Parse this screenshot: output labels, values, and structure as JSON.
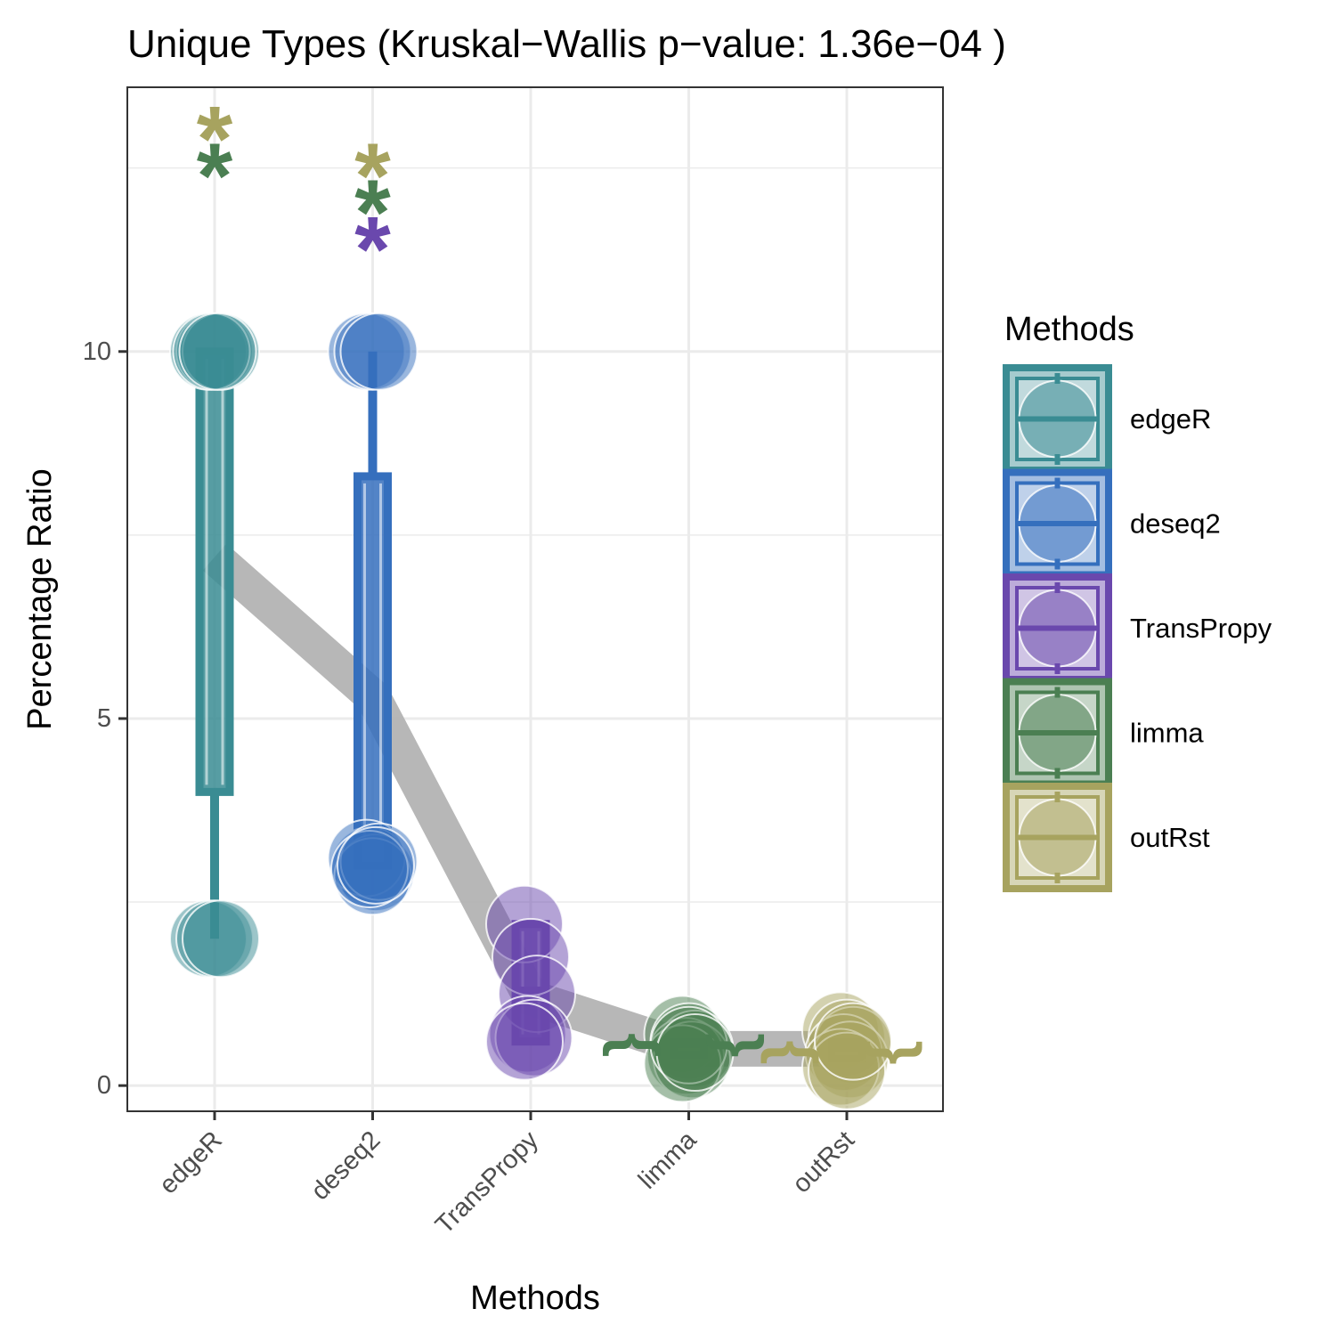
{
  "chart_data": {
    "type": "boxplot",
    "title": "Unique Types (Kruskal−Wallis p−value: 1.36e−04 )",
    "xlabel": "Methods",
    "ylabel": "Percentage Ratio",
    "categories": [
      "edgeR",
      "deseq2",
      "TransPropy",
      "limma",
      "outRst"
    ],
    "y_ticks": [
      {
        "value": 0,
        "label": "0"
      },
      {
        "value": 5,
        "label": "5"
      },
      {
        "value": 10,
        "label": "10"
      }
    ],
    "ylim": [
      -0.35,
      13.6
    ],
    "grid": true,
    "legend": {
      "title": "Methods",
      "position": "right",
      "entries": [
        "edgeR",
        "deseq2",
        "TransPropy",
        "limma",
        "outRst"
      ]
    },
    "colors": {
      "edgeR": "#3a8c93",
      "deseq2": "#356fbd",
      "TransPropy": "#6a48ad",
      "limma": "#4b7f52",
      "outRst": "#a7a35f",
      "mean_line": "#b3b3b3"
    },
    "boxes": [
      {
        "method": "edgeR",
        "min": 2.0,
        "q1": 4.0,
        "median": 10.0,
        "q3": 10.0,
        "max": 10.0
      },
      {
        "method": "deseq2",
        "min": 3.0,
        "q1": 3.0,
        "median": 3.0,
        "q3": 8.3,
        "max": 10.0
      },
      {
        "method": "TransPropy",
        "min": 0.6,
        "q1": 0.6,
        "median": 1.3,
        "q3": 2.2,
        "max": 2.2
      },
      {
        "method": "limma",
        "min": 0.4,
        "q1": 0.42,
        "median": 0.55,
        "q3": 0.6,
        "max": 0.62
      },
      {
        "method": "outRst",
        "min": 0.35,
        "q1": 0.36,
        "median": 0.5,
        "q3": 0.6,
        "max": 0.62
      }
    ],
    "points": [
      {
        "method": "edgeR",
        "values": [
          10.0,
          10.0,
          10.0,
          10.0,
          10.0,
          2.0,
          2.0,
          2.0
        ]
      },
      {
        "method": "deseq2",
        "values": [
          10.0,
          10.0,
          10.0,
          3.0,
          2.9,
          3.1,
          2.85,
          3.05,
          2.95,
          3.0
        ]
      },
      {
        "method": "TransPropy",
        "values": [
          2.2,
          1.75,
          1.25,
          0.7,
          0.65,
          0.6
        ]
      },
      {
        "method": "limma",
        "values": [
          0.7,
          0.6,
          0.5,
          0.4,
          0.35,
          0.3,
          0.55,
          0.45
        ]
      },
      {
        "method": "outRst",
        "values": [
          0.75,
          0.65,
          0.55,
          0.45,
          0.35,
          0.25,
          0.2,
          0.6
        ]
      }
    ],
    "mean_line": [
      {
        "method": "edgeR",
        "value": 7.2
      },
      {
        "method": "deseq2",
        "value": 5.3
      },
      {
        "method": "TransPropy",
        "value": 1.2
      },
      {
        "method": "limma",
        "value": 0.5
      },
      {
        "method": "outRst",
        "value": 0.5
      }
    ],
    "significance_marks": [
      {
        "method": "edgeR",
        "label": "*",
        "color": "outRst",
        "value": 13.3
      },
      {
        "method": "edgeR",
        "label": "*",
        "color": "limma",
        "value": 12.8
      },
      {
        "method": "deseq2",
        "label": "*",
        "color": "outRst",
        "value": 12.8
      },
      {
        "method": "deseq2",
        "label": "*",
        "color": "limma",
        "value": 12.3
      },
      {
        "method": "deseq2",
        "label": "*",
        "color": "TransPropy",
        "value": 11.8
      },
      {
        "method": "limma",
        "label": "{",
        "color": "limma",
        "value": 0.55,
        "side": "left"
      },
      {
        "method": "limma",
        "label": "}",
        "color": "limma",
        "value": 0.55,
        "side": "right"
      },
      {
        "method": "outRst",
        "label": "{",
        "color": "outRst",
        "value": 0.45,
        "side": "left"
      },
      {
        "method": "outRst",
        "label": "}",
        "color": "outRst",
        "value": 0.45,
        "side": "right"
      }
    ]
  }
}
